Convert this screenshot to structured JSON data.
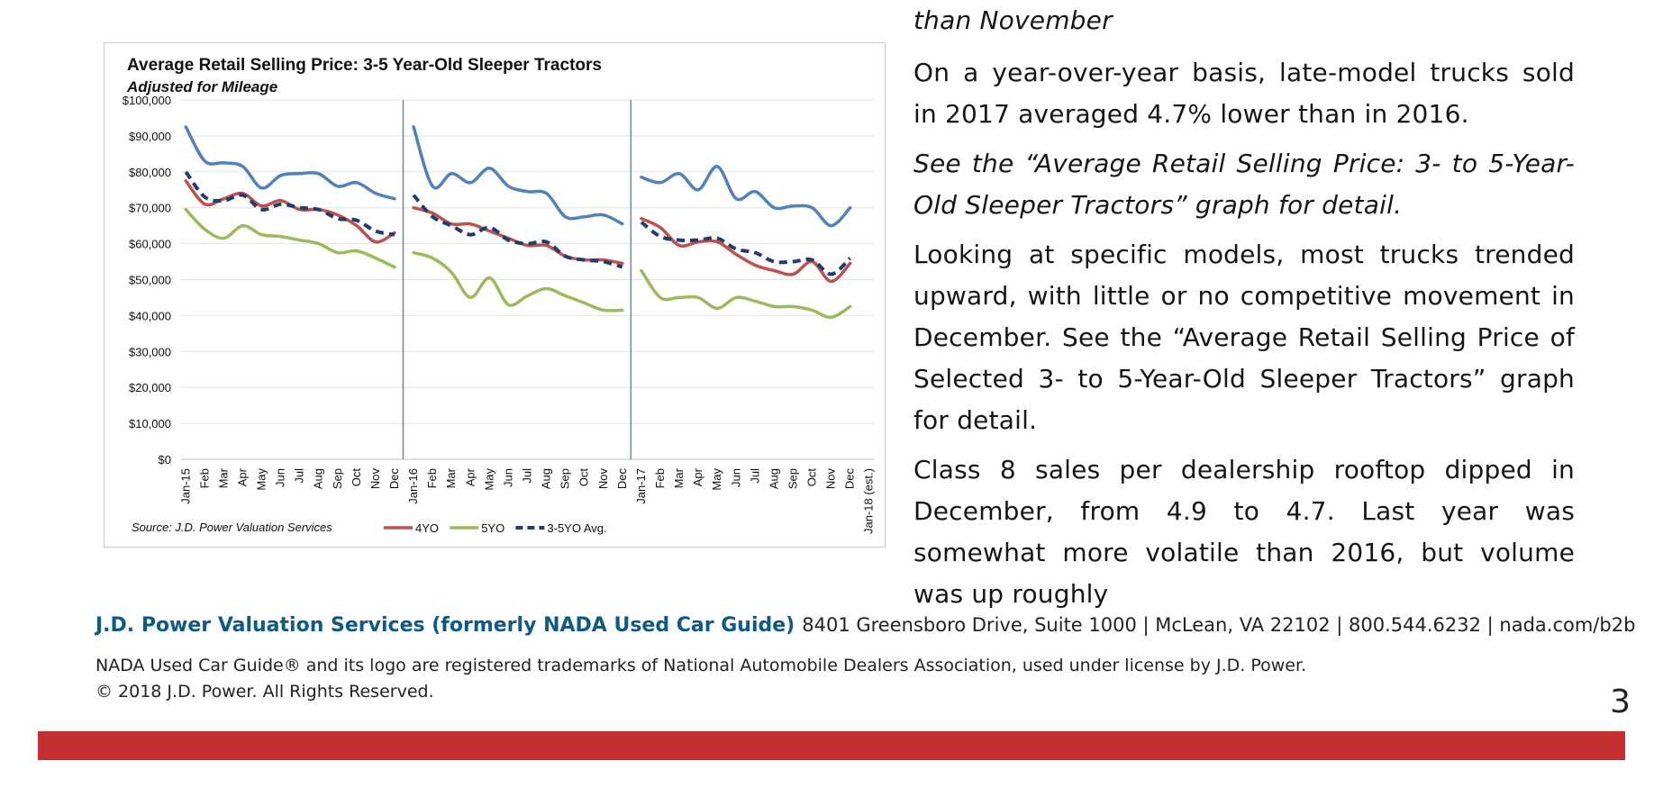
{
  "chart": {
    "title": "Average Retail Selling Price: 3-5 Year-Old Sleeper Tractors",
    "subtitle": "Adjusted for Mileage",
    "source": "Source: J.D. Power Valuation Services",
    "legend": [
      "4YO",
      "5YO",
      "3-5YO Avg."
    ]
  },
  "chart_data": {
    "type": "line",
    "title": "Average Retail Selling Price: 3-5 Year-Old Sleeper Tractors",
    "subtitle": "Adjusted for Mileage",
    "ylim": [
      0,
      100000
    ],
    "y_ticks": [
      "$0",
      "$10,000",
      "$20,000",
      "$30,000",
      "$40,000",
      "$50,000",
      "$60,000",
      "$70,000",
      "$80,000",
      "$90,000",
      "$100,000"
    ],
    "categories": [
      "Jan-15",
      "Feb",
      "Mar",
      "Apr",
      "May",
      "Jun",
      "Jul",
      "Aug",
      "Sep",
      "Oct",
      "Nov",
      "Dec",
      "Jan-16",
      "Feb",
      "Mar",
      "Apr",
      "May",
      "Jun",
      "Jul",
      "Aug",
      "Sep",
      "Oct",
      "Nov",
      "Dec",
      "Jan-17",
      "Feb",
      "Mar",
      "Apr",
      "May",
      "Jun",
      "Jul",
      "Aug",
      "Sep",
      "Oct",
      "Nov",
      "Dec",
      "Jan-18 (est.)"
    ],
    "year_dividers": [
      "Jan-16",
      "Jan-17"
    ],
    "grid": true,
    "legend_position": "bottom",
    "series": [
      {
        "color": "#4f81bd",
        "dashed": false,
        "values": [
          92500,
          83000,
          82500,
          81500,
          75500,
          79000,
          79500,
          79500,
          76000,
          77000,
          74000,
          72500,
          92500,
          76000,
          79500,
          77000,
          81000,
          76000,
          74500,
          74000,
          67500,
          67500,
          68000,
          65500,
          78500,
          77000,
          79500,
          75000,
          81500,
          72500,
          74500,
          70000,
          70500,
          70000,
          65000,
          70000,
          null
        ]
      },
      {
        "name": "4YO",
        "color": "#c0504d",
        "dashed": false,
        "values": [
          77500,
          71000,
          72500,
          74000,
          70500,
          72000,
          69500,
          69500,
          68000,
          65000,
          60500,
          63000,
          70000,
          68500,
          65500,
          65500,
          63500,
          61500,
          59500,
          59500,
          56500,
          55500,
          55500,
          54500,
          67000,
          64500,
          59500,
          60500,
          60500,
          57000,
          54000,
          52500,
          51500,
          55000,
          49500,
          54500,
          null
        ]
      },
      {
        "name": "5YO",
        "color": "#9bbb59",
        "dashed": false,
        "values": [
          69500,
          64000,
          61500,
          65000,
          62500,
          62000,
          61000,
          60000,
          57500,
          58000,
          56000,
          53500,
          57500,
          56000,
          52000,
          45000,
          50500,
          43000,
          45500,
          47500,
          45500,
          43500,
          41500,
          41500,
          52500,
          45000,
          45000,
          45000,
          42000,
          45000,
          44000,
          42500,
          42500,
          41500,
          39500,
          42500,
          null
        ]
      },
      {
        "name": "3-5YO Avg.",
        "color": "#1f3e6e",
        "dashed": true,
        "values": [
          80000,
          73000,
          72000,
          73500,
          69500,
          71000,
          70000,
          69500,
          67000,
          66500,
          63500,
          62500,
          73500,
          67500,
          65000,
          62500,
          64500,
          61000,
          60000,
          60500,
          56500,
          55500,
          55000,
          53500,
          66000,
          62000,
          61000,
          61000,
          61500,
          58500,
          57500,
          55000,
          55000,
          55500,
          51500,
          56000,
          null
        ]
      }
    ]
  },
  "article": {
    "p0": "than November",
    "p1": "On a year-over-year basis, late-model trucks sold in 2017 averaged 4.7% lower than in 2016.",
    "p2": "See the “Average Retail Selling Price: 3- to 5-Year-Old Sleeper Tractors” graph for detail.",
    "p3": "Looking at specific models, most trucks trended upward, with little or no competitive movement in December. See the “Average Retail Selling Price of Selected 3- to 5-Year-Old Sleeper Tractors” graph for detail.",
    "p4": "Class 8 sales per dealership rooftop dipped in December, from 4.9 to 4.7. Last year was somewhat more volatile than 2016, but volume was up roughly"
  },
  "footer": {
    "company": "J.D. Power Valuation Services (formerly NADA Used Car Guide)",
    "address": "8401 Greensboro Drive, Suite 1000 | McLean, VA 22102 | 800.544.6232 | nada.com/b2b",
    "trademark": "NADA Used Car Guide® and its logo are registered trademarks of National Automobile Dealers Association, used under license by J.D. Power.",
    "copyright": "© 2018 J.D. Power. All Rights Reserved.",
    "page_number": "3"
  },
  "colors": {
    "accent_red": "#c52f30",
    "company_blue": "#0d5a86"
  }
}
